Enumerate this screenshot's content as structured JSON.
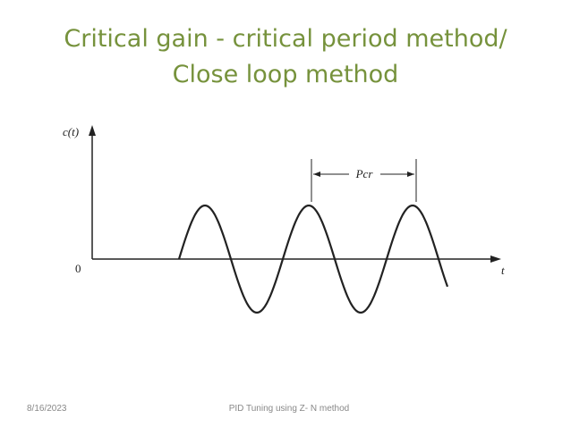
{
  "title_lines": [
    "Critical gain - critical period method/",
    "Close loop method"
  ],
  "diagram": {
    "y_axis_label": "c(t)",
    "origin_label": "0",
    "x_axis_label": "t",
    "period_label": "Pcr"
  },
  "footer": {
    "date": "8/16/2023",
    "text": "PID Tuning using Z- N method"
  }
}
